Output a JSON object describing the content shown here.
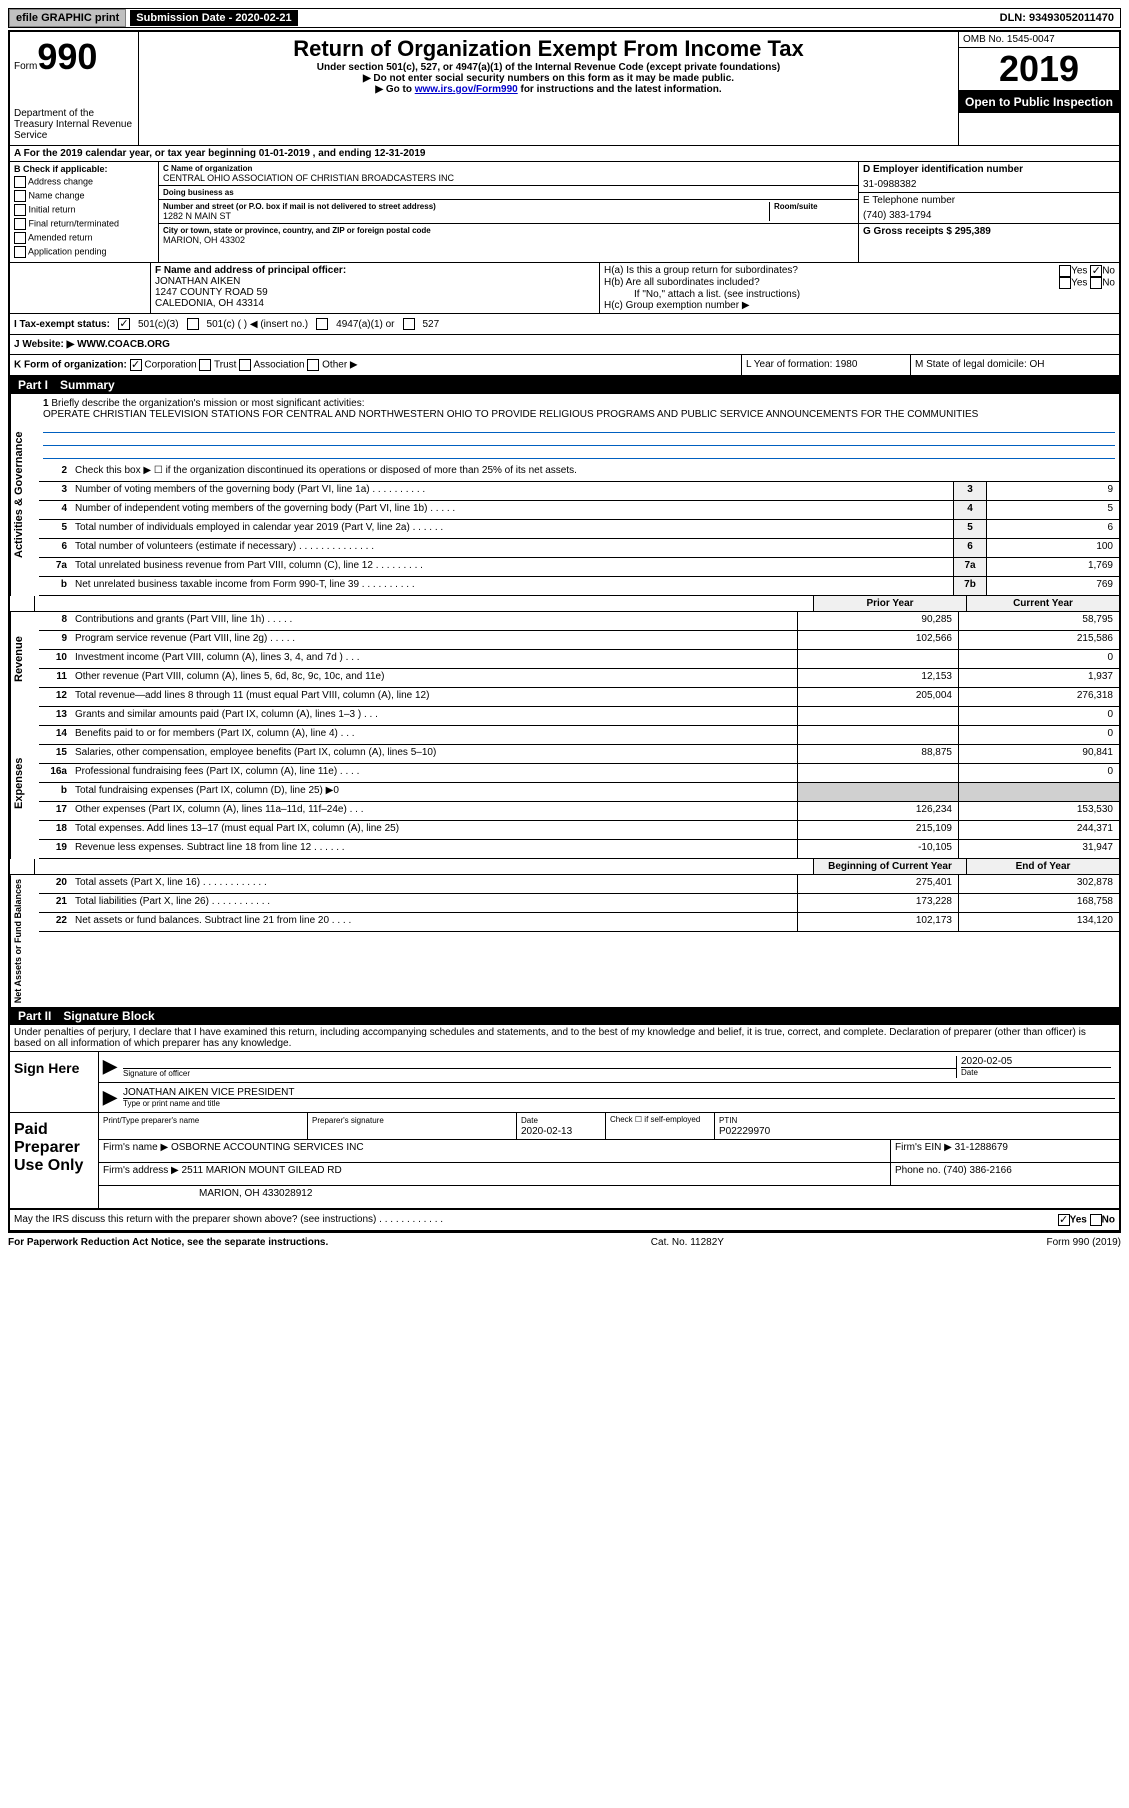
{
  "topbar": {
    "efile": "efile GRAPHIC print",
    "submission_label": "Submission Date - 2020-02-21",
    "dln": "DLN: 93493052011470"
  },
  "header": {
    "form_word": "Form",
    "form_number": "990",
    "title": "Return of Organization Exempt From Income Tax",
    "subtitle1": "Under section 501(c), 527, or 4947(a)(1) of the Internal Revenue Code (except private foundations)",
    "subtitle2": "▶ Do not enter social security numbers on this form as it may be made public.",
    "subtitle3_pre": "▶ Go to ",
    "subtitle3_link": "www.irs.gov/Form990",
    "subtitle3_post": " for instructions and the latest information.",
    "omb": "OMB No. 1545-0047",
    "year": "2019",
    "open_public": "Open to Public Inspection",
    "dept": "Department of the Treasury Internal Revenue Service"
  },
  "period": "A For the 2019 calendar year, or tax year beginning 01-01-2019    , and ending 12-31-2019",
  "section_b": {
    "label": "B Check if applicable:",
    "items": [
      "Address change",
      "Name change",
      "Initial return",
      "Final return/terminated",
      "Amended return",
      "Application pending"
    ]
  },
  "section_c": {
    "name_label": "C Name of organization",
    "name": "CENTRAL OHIO ASSOCIATION OF CHRISTIAN BROADCASTERS INC",
    "dba_label": "Doing business as",
    "dba": "",
    "addr_label": "Number and street (or P.O. box if mail is not delivered to street address)",
    "room_label": "Room/suite",
    "addr": "1282 N MAIN ST",
    "city_label": "City or town, state or province, country, and ZIP or foreign postal code",
    "city": "MARION, OH  43302"
  },
  "section_d": {
    "label": "D Employer identification number",
    "value": "31-0988382"
  },
  "section_e": {
    "label": "E Telephone number",
    "value": "(740) 383-1794"
  },
  "section_g": {
    "label": "G Gross receipts $ 295,389"
  },
  "section_f": {
    "label": "F  Name and address of principal officer:",
    "name": "JONATHAN AIKEN",
    "addr1": "1247 COUNTY ROAD 59",
    "addr2": "CALEDONIA, OH  43314"
  },
  "section_h": {
    "a": "H(a)  Is this a group return for subordinates?",
    "a_yes": "Yes",
    "a_no": "No",
    "b": "H(b)  Are all subordinates included?",
    "b_yes": "Yes",
    "b_no": "No",
    "b_note": "If \"No,\" attach a list. (see instructions)",
    "c": "H(c)  Group exemption number ▶"
  },
  "tax_status": {
    "label": "I  Tax-exempt status:",
    "opt1": "501(c)(3)",
    "opt2": "501(c) (  ) ◀ (insert no.)",
    "opt3": "4947(a)(1) or",
    "opt4": "527"
  },
  "website": {
    "label": "J  Website: ▶",
    "value": "WWW.COACB.ORG"
  },
  "form_org": {
    "label": "K Form of organization:",
    "opts": [
      "Corporation",
      "Trust",
      "Association",
      "Other ▶"
    ],
    "l": "L Year of formation: 1980",
    "m": "M State of legal domicile: OH"
  },
  "part1_label": "Part I",
  "part1_title": "Summary",
  "mission": {
    "num": "1",
    "label": "Briefly describe the organization's mission or most significant activities:",
    "text": "OPERATE CHRISTIAN TELEVISION STATIONS FOR CENTRAL AND NORTHWESTERN OHIO TO PROVIDE RELIGIOUS PROGRAMS AND PUBLIC SERVICE ANNOUNCEMENTS FOR THE COMMUNITIES"
  },
  "lines_gov": [
    {
      "num": "2",
      "text": "Check this box ▶ ☐ if the organization discontinued its operations or disposed of more than 25% of its net assets.",
      "box": "",
      "val": ""
    },
    {
      "num": "3",
      "text": "Number of voting members of the governing body (Part VI, line 1a)   .   .   .   .   .   .   .   .   .   .",
      "box": "3",
      "val": "9"
    },
    {
      "num": "4",
      "text": "Number of independent voting members of the governing body (Part VI, line 1b)   .   .   .   .   .",
      "box": "4",
      "val": "5"
    },
    {
      "num": "5",
      "text": "Total number of individuals employed in calendar year 2019 (Part V, line 2a)   .   .   .   .   .   .",
      "box": "5",
      "val": "6"
    },
    {
      "num": "6",
      "text": "Total number of volunteers (estimate if necessary)   .   .   .   .   .   .   .   .   .   .   .   .   .   .",
      "box": "6",
      "val": "100"
    },
    {
      "num": "7a",
      "text": "Total unrelated business revenue from Part VIII, column (C), line 12   .   .   .   .   .   .   .   .   .",
      "box": "7a",
      "val": "1,769"
    },
    {
      "num": "b",
      "text": "Net unrelated business taxable income from Form 990-T, line 39   .   .   .   .   .   .   .   .   .   .",
      "box": "7b",
      "val": "769"
    }
  ],
  "col_headers": {
    "prior": "Prior Year",
    "current": "Current Year"
  },
  "lines_rev": [
    {
      "num": "8",
      "text": "Contributions and grants (Part VIII, line 1h)   .   .   .   .   .",
      "prior": "90,285",
      "curr": "58,795"
    },
    {
      "num": "9",
      "text": "Program service revenue (Part VIII, line 2g)   .   .   .   .   .",
      "prior": "102,566",
      "curr": "215,586"
    },
    {
      "num": "10",
      "text": "Investment income (Part VIII, column (A), lines 3, 4, and 7d )   .   .   .",
      "prior": "",
      "curr": "0"
    },
    {
      "num": "11",
      "text": "Other revenue (Part VIII, column (A), lines 5, 6d, 8c, 9c, 10c, and 11e)",
      "prior": "12,153",
      "curr": "1,937"
    },
    {
      "num": "12",
      "text": "Total revenue—add lines 8 through 11 (must equal Part VIII, column (A), line 12)",
      "prior": "205,004",
      "curr": "276,318"
    }
  ],
  "lines_exp": [
    {
      "num": "13",
      "text": "Grants and similar amounts paid (Part IX, column (A), lines 1–3 )   .   .   .",
      "prior": "",
      "curr": "0"
    },
    {
      "num": "14",
      "text": "Benefits paid to or for members (Part IX, column (A), line 4)   .   .   .",
      "prior": "",
      "curr": "0"
    },
    {
      "num": "15",
      "text": "Salaries, other compensation, employee benefits (Part IX, column (A), lines 5–10)",
      "prior": "88,875",
      "curr": "90,841"
    },
    {
      "num": "16a",
      "text": "Professional fundraising fees (Part IX, column (A), line 11e)   .   .   .   .",
      "prior": "",
      "curr": "0"
    },
    {
      "num": "b",
      "text": "Total fundraising expenses (Part IX, column (D), line 25) ▶0",
      "prior": "__GRAY__",
      "curr": "__GRAY__"
    },
    {
      "num": "17",
      "text": "Other expenses (Part IX, column (A), lines 11a–11d, 11f–24e)   .   .   .",
      "prior": "126,234",
      "curr": "153,530"
    },
    {
      "num": "18",
      "text": "Total expenses. Add lines 13–17 (must equal Part IX, column (A), line 25)",
      "prior": "215,109",
      "curr": "244,371"
    },
    {
      "num": "19",
      "text": "Revenue less expenses. Subtract line 18 from line 12 .   .   .   .   .   .",
      "prior": "-10,105",
      "curr": "31,947"
    }
  ],
  "col_headers2": {
    "begin": "Beginning of Current Year",
    "end": "End of Year"
  },
  "lines_net": [
    {
      "num": "20",
      "text": "Total assets (Part X, line 16)   .   .   .   .   .   .   .   .   .   .   .   .",
      "prior": "275,401",
      "curr": "302,878"
    },
    {
      "num": "21",
      "text": "Total liabilities (Part X, line 26)   .   .   .   .   .   .   .   .   .   .   .",
      "prior": "173,228",
      "curr": "168,758"
    },
    {
      "num": "22",
      "text": "Net assets or fund balances. Subtract line 21 from line 20   .   .   .   .",
      "prior": "102,173",
      "curr": "134,120"
    }
  ],
  "part2_label": "Part II",
  "part2_title": "Signature Block",
  "penalties": "Under penalties of perjury, I declare that I have examined this return, including accompanying schedules and statements, and to the best of my knowledge and belief, it is true, correct, and complete. Declaration of preparer (other than officer) is based on all information of which preparer has any knowledge.",
  "sign": {
    "label": "Sign Here",
    "sig_label": "Signature of officer",
    "date_label": "Date",
    "date": "2020-02-05",
    "name": "JONATHAN AIKEN  VICE PRESIDENT",
    "name_label": "Type or print name and title"
  },
  "prep": {
    "label": "Paid Preparer Use Only",
    "r1": {
      "c1_label": "Print/Type preparer's name",
      "c2_label": "Preparer's signature",
      "c3_label": "Date",
      "c3": "2020-02-13",
      "c4_label": "Check ☐ if self-employed",
      "c5_label": "PTIN",
      "c5": "P02229970"
    },
    "r2": {
      "label": "Firm's name      ▶",
      "val": "OSBORNE ACCOUNTING SERVICES INC",
      "ein_label": "Firm's EIN ▶",
      "ein": "31-1288679"
    },
    "r3": {
      "label": "Firm's address ▶",
      "val": "2511 MARION MOUNT GILEAD RD",
      "phone_label": "Phone no.",
      "phone": "(740) 386-2166"
    },
    "r4": {
      "val": "MARION, OH  433028912"
    }
  },
  "discuss": {
    "text": "May the IRS discuss this return with the preparer shown above? (see instructions)   .   .   .   .   .   .   .   .   .   .   .   .",
    "yes": "Yes",
    "no": "No"
  },
  "footer": {
    "left": "For Paperwork Reduction Act Notice, see the separate instructions.",
    "mid": "Cat. No. 11282Y",
    "right": "Form 990 (2019)"
  },
  "side_labels": {
    "gov": "Activities & Governance",
    "rev": "Revenue",
    "exp": "Expenses",
    "net": "Net Assets or Fund Balances"
  }
}
